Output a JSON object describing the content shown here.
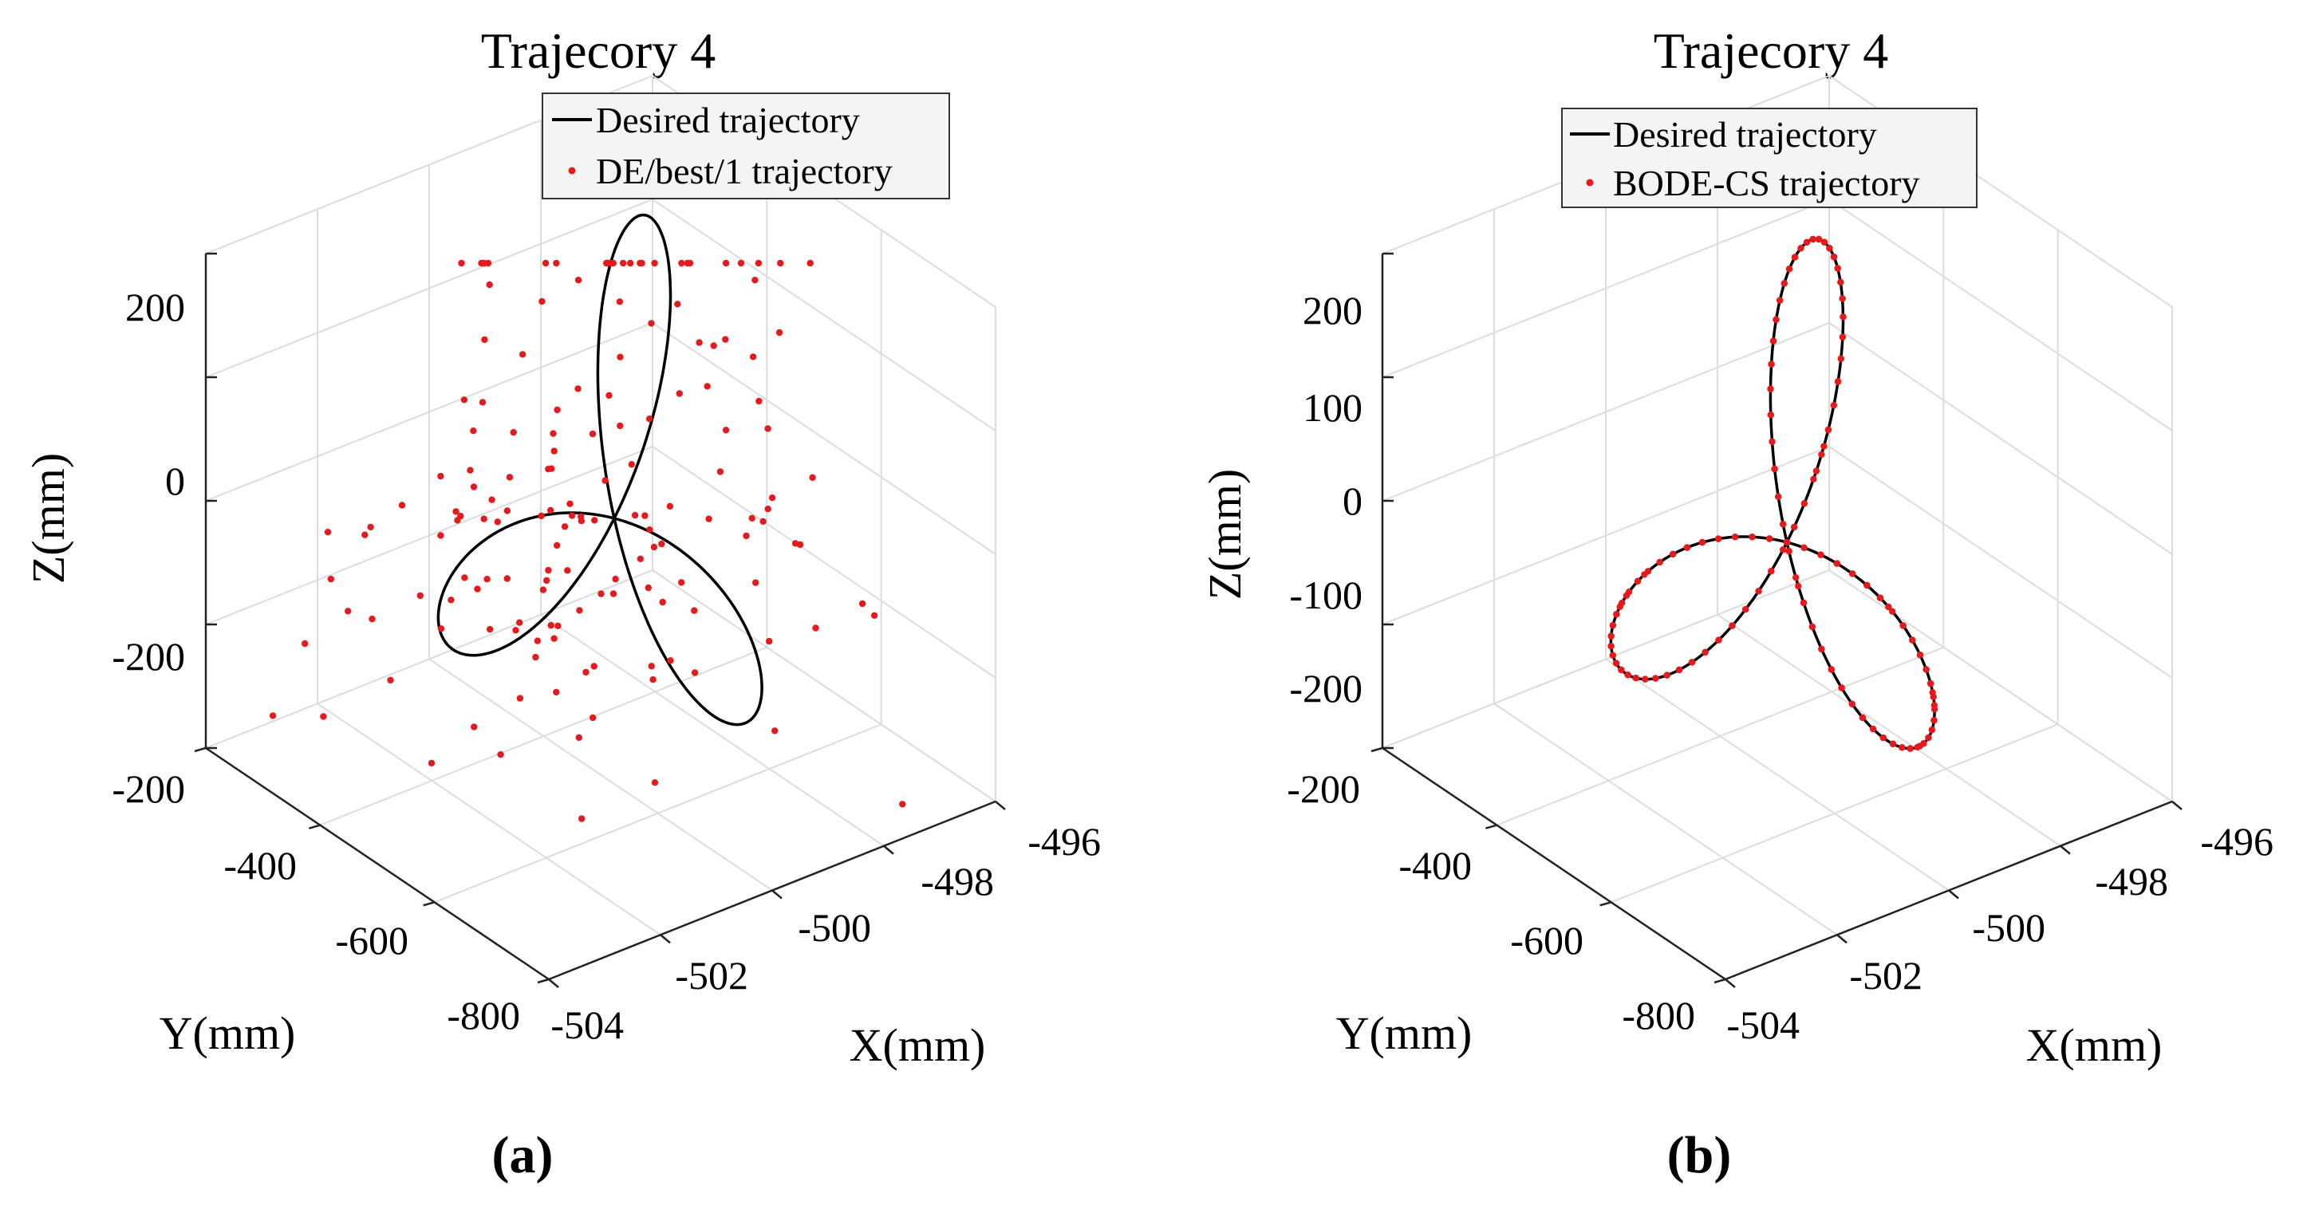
{
  "figure": {
    "panel_labels": [
      "(a)",
      "(b)"
    ]
  },
  "chart_data": [
    {
      "type": "scatter3d",
      "title": "Trajecory 4",
      "xlabel": "X(mm)",
      "ylabel": "Y(mm)",
      "zlabel": "Z(mm)",
      "x_ticks": [
        "-504",
        "-502",
        "-500",
        "-498",
        "-496"
      ],
      "y_ticks": [
        "-800",
        "-600",
        "-400",
        "-200"
      ],
      "z_ticks": [
        "-200",
        "0",
        "200"
      ],
      "xlim": [
        -504,
        -496
      ],
      "ylim": [
        -800,
        -200
      ],
      "zlim": [
        -300,
        250
      ],
      "grid": true,
      "legend": {
        "position": "top-right",
        "entries": [
          "Desired trajectory",
          "DE/best/1 trajectory"
        ]
      },
      "series": [
        {
          "name": "Desired trajectory",
          "style": "line",
          "color": "#000000",
          "shape": "three-lobed rose curve"
        },
        {
          "name": "DE/best/1 trajectory",
          "style": "dots",
          "color": "#e41a1c",
          "point_count": 160,
          "pattern": "widely scattered around the desired curve"
        }
      ]
    },
    {
      "type": "scatter3d",
      "title": "Trajecory 4",
      "xlabel": "X(mm)",
      "ylabel": "Y(mm)",
      "zlabel": "Z(mm)",
      "x_ticks": [
        "-504",
        "-502",
        "-500",
        "-498",
        "-496"
      ],
      "y_ticks": [
        "-800",
        "-600",
        "-400",
        "-200"
      ],
      "z_ticks": [
        "-200",
        "-100",
        "0",
        "100",
        "200"
      ],
      "xlim": [
        -504,
        -496
      ],
      "ylim": [
        -800,
        -200
      ],
      "zlim": [
        -250,
        250
      ],
      "grid": true,
      "legend": {
        "position": "top-right",
        "entries": [
          "Desired trajectory",
          "BODE-CS trajectory"
        ]
      },
      "series": [
        {
          "name": "Desired trajectory",
          "style": "line",
          "color": "#000000",
          "shape": "three-lobed rose curve"
        },
        {
          "name": "BODE-CS trajectory",
          "style": "dots",
          "color": "#e41a1c",
          "point_count": 200,
          "pattern": "lies on the desired curve"
        }
      ]
    }
  ]
}
